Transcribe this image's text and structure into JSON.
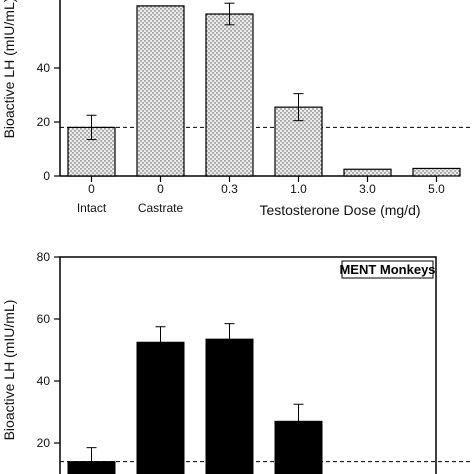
{
  "chart_data": [
    {
      "type": "bar",
      "title": "",
      "ylabel": "Bioactive LH (mIU/mL)",
      "xlabel": "Testosterone Dose (mg/d)",
      "ylim": [
        0,
        80
      ],
      "yticks": [
        "0",
        "20",
        "40"
      ],
      "categories": [
        "0",
        "0",
        "0.3",
        "1.0",
        "3.0",
        "5.0"
      ],
      "category_sublabels": [
        "Intact",
        "Castrate",
        "",
        "",
        "",
        ""
      ],
      "values": [
        18,
        63,
        60,
        25.5,
        2.5,
        2.8
      ],
      "errors": [
        4.5,
        0,
        4,
        5,
        0,
        0
      ],
      "reference_line": 18,
      "fill": "stippled",
      "colors": {
        "bar_fill": "#e4e4e4",
        "bar_stroke": "#000000"
      }
    },
    {
      "type": "bar",
      "title": "",
      "legend": "MENT Monkeys",
      "ylabel": "Bioactive LH (mIU/mL)",
      "ylim": [
        0,
        80
      ],
      "yticks": [
        "20",
        "40",
        "60",
        "80"
      ],
      "values": [
        14,
        52.5,
        53.5,
        27
      ],
      "errors": [
        4.5,
        5,
        5,
        5.5
      ],
      "reference_line": 14,
      "fill": "solid",
      "colors": {
        "bar_fill": "#000000",
        "bar_stroke": "#000000"
      }
    }
  ]
}
